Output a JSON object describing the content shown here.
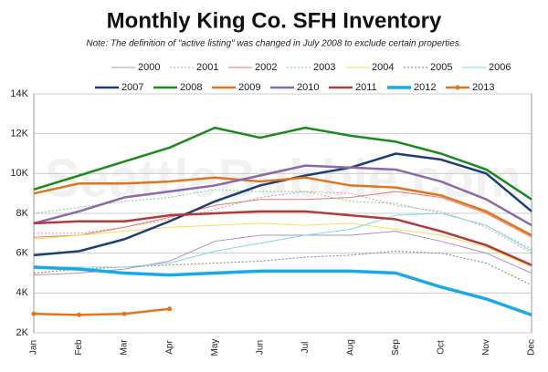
{
  "chart_data": {
    "type": "line",
    "title": "Monthly King Co. SFH Inventory",
    "subtitle": "Note: The definition of \"active listing\" was changed in July 2008 to exclude certain properties.",
    "watermark": "SeattleBubble.com",
    "categories": [
      "Jan",
      "Feb",
      "Mar",
      "Apr",
      "May",
      "Jun",
      "Jul",
      "Aug",
      "Sep",
      "Oct",
      "Nov",
      "Dec"
    ],
    "ylim": [
      2000,
      14000
    ],
    "yticks": [
      {
        "value": 2000,
        "label": "2K"
      },
      {
        "value": 4000,
        "label": "4K"
      },
      {
        "value": 6000,
        "label": "6K"
      },
      {
        "value": 8000,
        "label": "8K"
      },
      {
        "value": 10000,
        "label": "10K"
      },
      {
        "value": 12000,
        "label": "12K"
      },
      {
        "value": 14000,
        "label": "14K"
      }
    ],
    "grid": true,
    "series": [
      {
        "name": "2000",
        "color": "#a98fd0",
        "style": "thin",
        "values": [
          4900,
          5000,
          5200,
          5600,
          6600,
          6900,
          6900,
          6900,
          7100,
          6600,
          6000,
          5000
        ]
      },
      {
        "name": "2001",
        "color": "#e58fb0",
        "style": "dotted",
        "values": [
          7000,
          7000,
          7300,
          7700,
          8200,
          8800,
          9100,
          9000,
          8400,
          8100,
          7300,
          6000
        ]
      },
      {
        "name": "2002",
        "color": "#ea7a6a",
        "style": "thin",
        "values": [
          6800,
          6900,
          7300,
          7800,
          8400,
          8700,
          8700,
          8800,
          9100,
          8800,
          8000,
          6800
        ]
      },
      {
        "name": "2003",
        "color": "#7fcf8f",
        "style": "dotted",
        "values": [
          8000,
          8300,
          8600,
          8800,
          9200,
          9100,
          9100,
          8600,
          8500,
          8000,
          7400,
          6200
        ]
      },
      {
        "name": "2004",
        "color": "#f0e050",
        "style": "thin",
        "values": [
          6700,
          6900,
          7100,
          7300,
          7400,
          7500,
          7400,
          7500,
          7200,
          6900,
          6300,
          5300
        ]
      },
      {
        "name": "2005",
        "color": "#9a7a5a",
        "style": "dotted",
        "values": [
          5000,
          5200,
          5300,
          5400,
          5500,
          5600,
          5800,
          5900,
          6100,
          6000,
          5500,
          4400
        ]
      },
      {
        "name": "2006",
        "color": "#80d8e8",
        "style": "thin",
        "values": [
          5300,
          5300,
          5300,
          5500,
          6100,
          6500,
          6900,
          7200,
          7900,
          8000,
          7400,
          6100
        ]
      },
      {
        "name": "2007",
        "color": "#1f3e78",
        "style": "thick",
        "values": [
          5900,
          6100,
          6700,
          7600,
          8600,
          9400,
          9900,
          10300,
          11000,
          10700,
          10000,
          8100
        ]
      },
      {
        "name": "2008",
        "color": "#1a8a1a",
        "style": "thick",
        "values": [
          9200,
          9900,
          10600,
          11300,
          12300,
          11800,
          12300,
          11900,
          11600,
          11000,
          10200,
          8700
        ]
      },
      {
        "name": "2009",
        "color": "#e0751e",
        "style": "thick",
        "values": [
          9000,
          9500,
          9500,
          9600,
          9800,
          9600,
          9800,
          9400,
          9300,
          8900,
          8100,
          6900
        ]
      },
      {
        "name": "2010",
        "color": "#8a6aaa",
        "style": "thick",
        "values": [
          7500,
          8100,
          8800,
          9100,
          9400,
          9900,
          10400,
          10300,
          10200,
          9600,
          8700,
          7400
        ]
      },
      {
        "name": "2011",
        "color": "#b03a3a",
        "style": "thick",
        "values": [
          7500,
          7600,
          7600,
          7900,
          8000,
          8100,
          8100,
          7900,
          7700,
          7100,
          6400,
          5400
        ]
      },
      {
        "name": "2012",
        "color": "#1aa8e8",
        "style": "heavy",
        "values": [
          5300,
          5200,
          5000,
          4900,
          5000,
          5100,
          5100,
          5100,
          5000,
          4300,
          3700,
          2900
        ]
      },
      {
        "name": "2013",
        "color": "#e0751e",
        "style": "thick",
        "marker": "circle",
        "values": [
          2950,
          2900,
          2950,
          3200,
          null,
          null,
          null,
          null,
          null,
          null,
          null,
          null
        ]
      }
    ]
  }
}
